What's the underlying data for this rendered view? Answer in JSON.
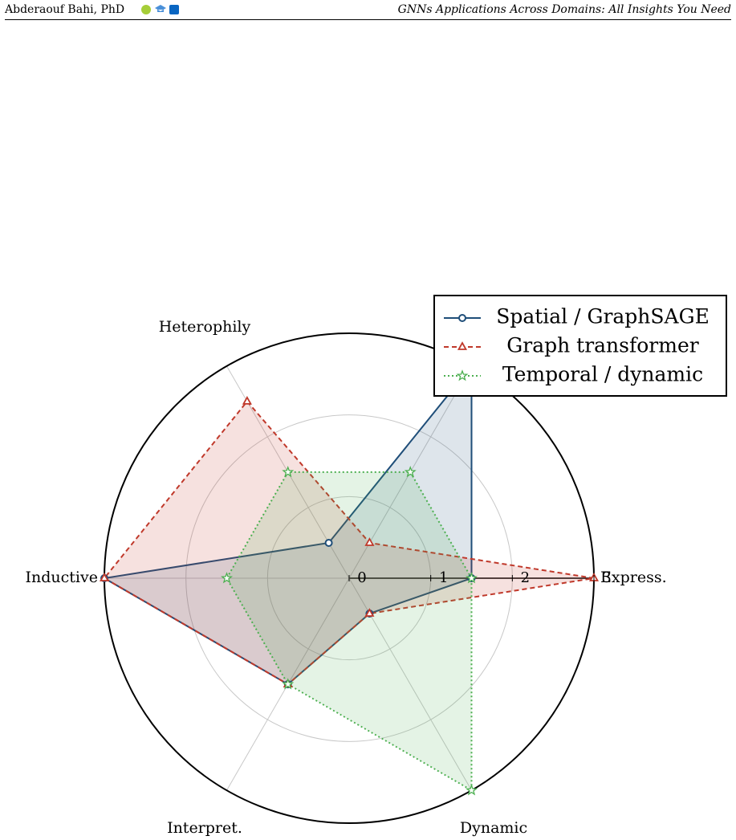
{
  "header": {
    "author": "Abderaouf Bahi, PhD",
    "title": "GNNs Applications Across Domains: All Insights You Need"
  },
  "chart_data": {
    "type": "radar",
    "categories": [
      "Express.",
      null,
      "Heterophily",
      "Inductive",
      "Interpret.",
      "Dynamic"
    ],
    "series": [
      {
        "name": "Spatial / GraphSAGE",
        "color": "#1f4e79",
        "line": "solid",
        "marker": "circle",
        "values": [
          1.5,
          3,
          0.5,
          3,
          1.5,
          0.5
        ]
      },
      {
        "name": "Graph transformer",
        "color": "#c0392b",
        "line": "dashed",
        "marker": "triangle",
        "values": [
          3,
          0.5,
          2.5,
          3,
          1.5,
          0.5
        ]
      },
      {
        "name": "Temporal / dynamic",
        "color": "#4caf50",
        "line": "dotted",
        "marker": "star",
        "values": [
          1.5,
          1.5,
          1.5,
          1.5,
          1.5,
          3
        ]
      }
    ],
    "rlim": [
      0,
      3
    ],
    "rticks": [
      0,
      1,
      2,
      3
    ],
    "grid": true,
    "legend": "upper right"
  }
}
